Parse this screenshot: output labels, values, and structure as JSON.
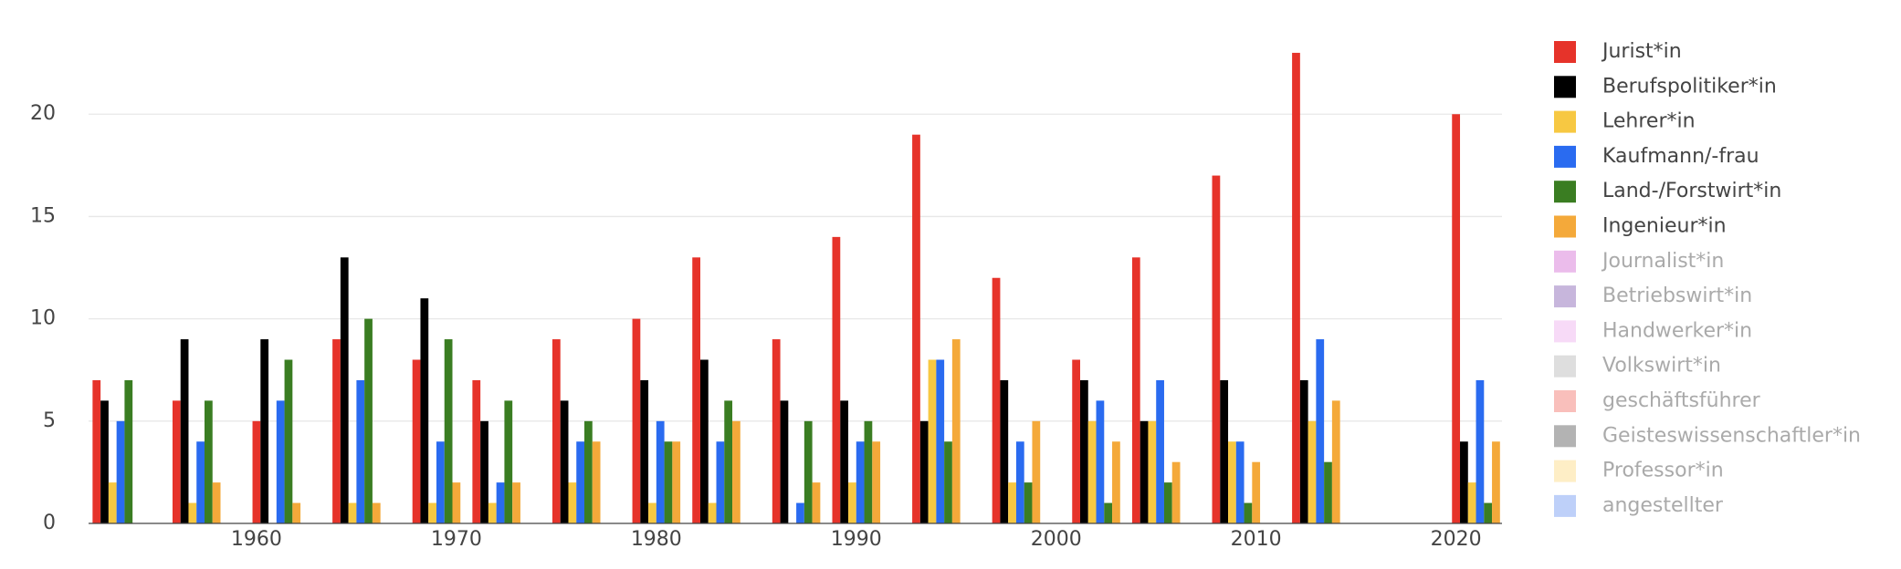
{
  "chart_data": {
    "type": "bar",
    "x": [
      1953,
      1957,
      1961,
      1965,
      1969,
      1972,
      1976,
      1980,
      1983,
      1987,
      1990,
      1994,
      1998,
      2002,
      2005,
      2009,
      2013,
      2021
    ],
    "series": [
      {
        "name": "Jurist*in",
        "color": "#e6332a",
        "values": [
          7,
          6,
          5,
          9,
          8,
          7,
          9,
          10,
          13,
          9,
          14,
          19,
          12,
          8,
          13,
          17,
          23,
          20
        ]
      },
      {
        "name": "Berufspolitiker*in",
        "color": "#000000",
        "values": [
          6,
          9,
          9,
          13,
          11,
          5,
          6,
          7,
          8,
          6,
          6,
          5,
          7,
          7,
          5,
          7,
          7,
          4
        ]
      },
      {
        "name": "Lehrer*in",
        "color": "#f7c842",
        "values": [
          2,
          1,
          0,
          1,
          1,
          1,
          2,
          1,
          1,
          0,
          2,
          8,
          2,
          5,
          5,
          4,
          5,
          2
        ]
      },
      {
        "name": "Kaufmann/-frau",
        "color": "#2a6bf0",
        "values": [
          5,
          4,
          6,
          7,
          4,
          2,
          4,
          5,
          4,
          1,
          4,
          8,
          4,
          6,
          7,
          4,
          9,
          7
        ]
      },
      {
        "name": "Land-/Forstwirt*in",
        "color": "#3a7d22",
        "values": [
          7,
          6,
          8,
          10,
          9,
          6,
          5,
          4,
          6,
          5,
          5,
          4,
          2,
          1,
          2,
          1,
          3,
          1
        ]
      },
      {
        "name": "Ingenieur*in",
        "color": "#f4a93a",
        "values": [
          0,
          2,
          1,
          1,
          2,
          2,
          4,
          4,
          5,
          2,
          4,
          9,
          5,
          4,
          3,
          3,
          6,
          4
        ]
      },
      {
        "name": "Journalist*in",
        "color": "#dd8fdd",
        "visible": false
      },
      {
        "name": "Betriebswirt*in",
        "color": "#a285c4",
        "visible": false
      },
      {
        "name": "Handwerker*in",
        "color": "#f2c2f2",
        "visible": false
      },
      {
        "name": "Volkswirt*in",
        "color": "#c8c8c8",
        "visible": false
      },
      {
        "name": "geschäftsführer",
        "color": "#f5958d",
        "visible": false
      },
      {
        "name": "Geisteswissenschaftler*in",
        "color": "#808080",
        "visible": false
      },
      {
        "name": "Professor*in",
        "color": "#fde3a0",
        "visible": false
      },
      {
        "name": "angestellter",
        "color": "#92b1f5",
        "visible": false
      }
    ],
    "xlim": [
      1951.6,
      2022.3
    ],
    "xticks": [
      1960,
      1970,
      1980,
      1990,
      2000,
      2010,
      2020
    ],
    "ylim": [
      0,
      24.2
    ],
    "yticks": [
      0,
      5,
      10,
      15,
      20
    ],
    "grid": true
  }
}
